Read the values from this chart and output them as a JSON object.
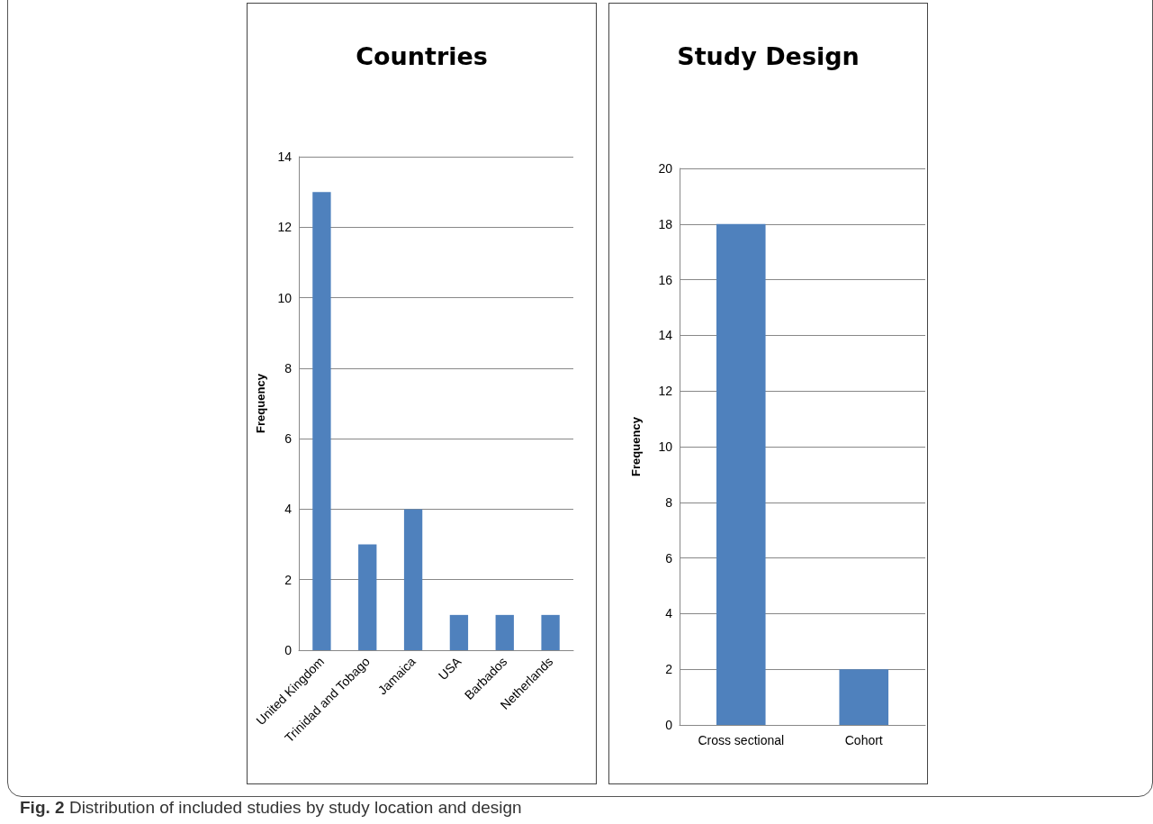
{
  "chart_data": [
    {
      "type": "bar",
      "title": "Countries",
      "ylabel": "Frequency",
      "categories": [
        "United Kingdom",
        "Trinidad and Tobago",
        "Jamaica",
        "USA",
        "Barbados",
        "Netherlands"
      ],
      "values": [
        13,
        3,
        4,
        1,
        1,
        1
      ],
      "color": "#4f81bd",
      "ylim": [
        0,
        14
      ],
      "yticks": [
        0,
        2,
        4,
        6,
        8,
        10,
        12,
        14
      ],
      "grid": "y",
      "annotations": [
        "Fig. 2 Distribution of included studies by study location and design"
      ]
    },
    {
      "type": "bar",
      "title": "Study Design",
      "ylabel": "Frequency",
      "categories": [
        "Cross sectional",
        "Cohort"
      ],
      "values": [
        18,
        2
      ],
      "color": "#4f81bd",
      "ylim": [
        0,
        20
      ],
      "yticks": [
        0,
        2,
        4,
        6,
        8,
        10,
        12,
        14,
        16,
        18,
        20
      ],
      "grid": "y"
    }
  ]
}
